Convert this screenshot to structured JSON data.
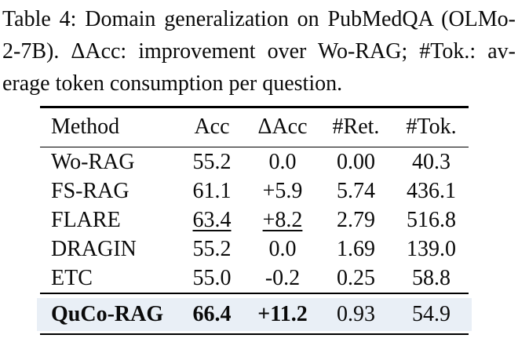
{
  "caption": {
    "lines": [
      "Table 4: Domain generalization on PubMedQA (OLMo-",
      "2-7B). ΔAcc: improvement over Wo-RAG; #Tok.: av-",
      "erage token consumption per question."
    ]
  },
  "table": {
    "columns": [
      "Method",
      "Acc",
      "ΔAcc",
      "#Ret.",
      "#Tok."
    ],
    "rows": [
      {
        "method": "Wo-RAG",
        "acc": "55.2",
        "dacc": "0.0",
        "ret": "0.00",
        "tok": "40.3"
      },
      {
        "method": "FS-RAG",
        "acc": "61.1",
        "dacc": "+5.9",
        "ret": "5.74",
        "tok": "436.1"
      },
      {
        "method": "FLARE",
        "acc": "63.4",
        "dacc": "+8.2",
        "ret": "2.79",
        "tok": "516.8"
      },
      {
        "method": "DRAGIN",
        "acc": "55.2",
        "dacc": "0.0",
        "ret": "1.69",
        "tok": "139.0"
      },
      {
        "method": "ETC",
        "acc": "55.0",
        "dacc": "-0.2",
        "ret": "0.25",
        "tok": "58.8"
      }
    ],
    "highlight_row": {
      "method": "QuCo-RAG",
      "acc": "66.4",
      "dacc": "+11.2",
      "ret": "0.93",
      "tok": "54.9"
    },
    "colors": {
      "highlight_bg": "#e9eff6",
      "text": "#0a0a0a",
      "background": "#ffffff"
    }
  }
}
